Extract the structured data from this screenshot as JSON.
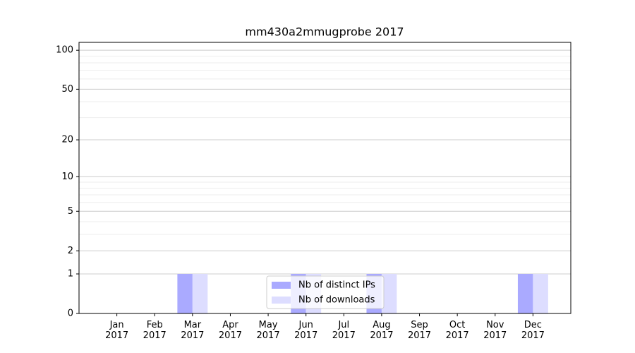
{
  "chart_data": {
    "type": "bar",
    "title": "mm430a2mmugprobe 2017",
    "categories": [
      "Jan\n2017",
      "Feb\n2017",
      "Mar\n2017",
      "Apr\n2017",
      "May\n2017",
      "Jun\n2017",
      "Jul\n2017",
      "Aug\n2017",
      "Sep\n2017",
      "Oct\n2017",
      "Nov\n2017",
      "Dec\n2017"
    ],
    "series": [
      {
        "name": "Nb of distinct IPs",
        "color": "#aaaaff",
        "values": [
          0,
          0,
          1,
          0,
          0,
          1,
          0,
          1,
          0,
          0,
          0,
          1
        ]
      },
      {
        "name": "Nb of downloads",
        "color": "#ddddff",
        "values": [
          0,
          0,
          1,
          0,
          0,
          1,
          0,
          1,
          0,
          0,
          0,
          1
        ]
      }
    ],
    "yscale": "log1p",
    "ylim": [
      0,
      115
    ],
    "yticks": [
      0,
      1,
      2,
      5,
      10,
      20,
      50,
      100
    ],
    "y_minor_grid": [
      3,
      4,
      6,
      7,
      8,
      9,
      30,
      40,
      60,
      70,
      80,
      90
    ],
    "grid": true,
    "legend": "lower center"
  }
}
